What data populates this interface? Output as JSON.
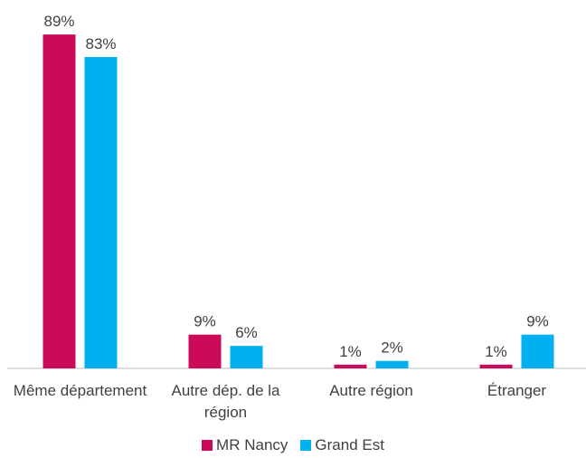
{
  "chart_data": {
    "type": "bar",
    "categories": [
      "Même département",
      "Autre dép. de la région",
      "Autre région",
      "Étranger"
    ],
    "series": [
      {
        "name": "MR Nancy",
        "color": "#cc0a5a",
        "values": [
          89,
          9,
          1,
          1
        ],
        "value_labels": [
          "89%",
          "9%",
          "1%",
          "1%"
        ]
      },
      {
        "name": "Grand Est",
        "color": "#00b0f0",
        "values": [
          83,
          6,
          2,
          9
        ],
        "value_labels": [
          "83%",
          "6%",
          "2%",
          "9%"
        ]
      }
    ],
    "ylim": [
      0,
      90
    ],
    "legend": "bottom"
  }
}
